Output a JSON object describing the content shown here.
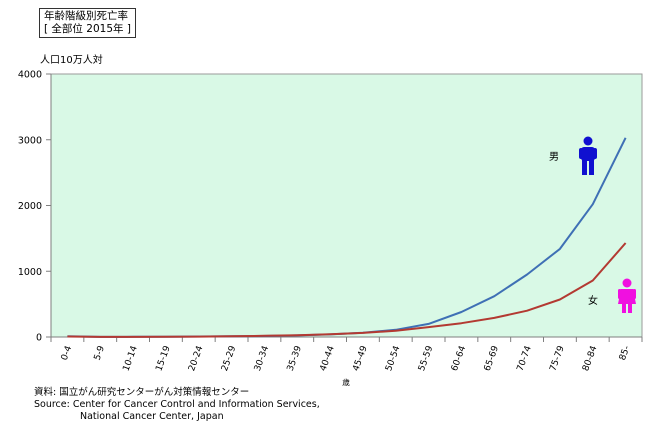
{
  "title": "年齢階級別死亡率",
  "subtitle": "[ 全部位 2015年 ]",
  "source": {
    "line1": "資料:   国立がん研究センターがん対策情報センター",
    "line2": "Source: Center for Cancer Control and Information Services,",
    "line3": "National Cancer Center, Japan"
  },
  "chart_data": {
    "type": "line",
    "ylabel": "人口10万人対",
    "xlabel": "歳",
    "ylim": [
      0,
      4000
    ],
    "yticks": [
      0,
      1000,
      2000,
      3000,
      4000
    ],
    "grid": false,
    "categories": [
      "0-4",
      "5-9",
      "10-14",
      "15-19",
      "20-24",
      "25-29",
      "30-34",
      "35-39",
      "40-44",
      "45-49",
      "50-54",
      "55-59",
      "60-64",
      "65-69",
      "70-74",
      "75-79",
      "80-84",
      "85-"
    ],
    "series": [
      {
        "name": "男",
        "color": "#3f70b5",
        "values": [
          10,
          2,
          3,
          5,
          8,
          10,
          15,
          25,
          40,
          65,
          110,
          200,
          380,
          620,
          950,
          1340,
          2020,
          3030
        ]
      },
      {
        "name": "女",
        "color": "#b33a32",
        "values": [
          8,
          2,
          2,
          3,
          6,
          10,
          18,
          28,
          42,
          62,
          95,
          150,
          210,
          290,
          400,
          570,
          860,
          1430
        ]
      }
    ],
    "plot_bg": "#d9f9e6",
    "icon_colors": {
      "male": "#1010d0",
      "female": "#f010e0"
    }
  }
}
